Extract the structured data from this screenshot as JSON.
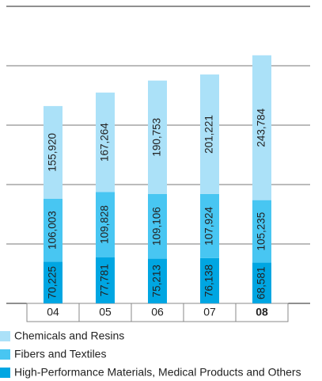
{
  "chart_data": {
    "type": "stacked_bar",
    "categories": [
      "04",
      "05",
      "06",
      "07",
      "08"
    ],
    "series": [
      {
        "name": "High-Performance Materials, Medical Products and Others",
        "color": "#00a6e2",
        "values": [
          70225,
          77781,
          75213,
          76138,
          68581
        ],
        "value_labels": [
          "70,225",
          "77,781",
          "75,213",
          "76,138",
          "68,581"
        ]
      },
      {
        "name": "Fibers and Textiles",
        "color": "#48c6f2",
        "values": [
          106003,
          109828,
          109106,
          107924,
          105235
        ],
        "value_labels": [
          "106,003",
          "109,828",
          "109,106",
          "107,924",
          "105,235"
        ]
      },
      {
        "name": "Chemicals and Resins",
        "color": "#abe1f8",
        "values": [
          155920,
          167264,
          190753,
          201221,
          243784
        ],
        "value_labels": [
          "155,920",
          "167,264",
          "190,753",
          "201,221",
          "243,784"
        ]
      }
    ],
    "ylim": [
      0,
      500000
    ],
    "yticks": [
      0,
      100000,
      200000,
      300000,
      400000,
      500000
    ],
    "grid": true
  }
}
